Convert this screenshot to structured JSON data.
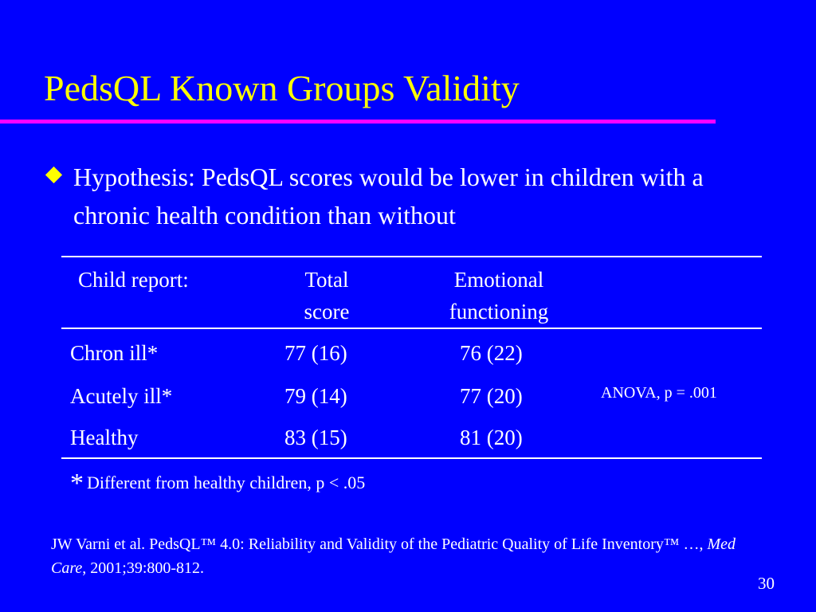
{
  "slide": {
    "title": "PedsQL Known Groups Validity",
    "bullet": "Hypothesis: PedsQL scores would be lower in children with a chronic health condition than without",
    "table": {
      "headers": {
        "col0": "Child report:",
        "col1_line1": "Total",
        "col1_line2": "score",
        "col2_line1": "Emotional",
        "col2_line2": "functioning"
      },
      "rows": [
        {
          "label": "Chron ill*",
          "total": "77 (16)",
          "emotional": "76 (22)"
        },
        {
          "label": "Acutely ill*",
          "total": "79 (14)",
          "emotional": "77 (20)"
        },
        {
          "label": "Healthy",
          "total": "83 (15)",
          "emotional": "81 (20)"
        }
      ],
      "anova": "ANOVA, p = .001"
    },
    "footnote": {
      "marker": "*",
      "text": "Different from healthy children, p < .05"
    },
    "citation": {
      "part1": "JW Varni et al. PedsQL™ 4.0: Reliability and Validity of the Pediatric Quality of Life Inventory™ …, ",
      "journal": "Med Care",
      "part2": ", 2001;39:800-812."
    },
    "page_number": "30"
  },
  "colors": {
    "background": "#0000ff",
    "title": "#ffff00",
    "title_rule": "#ff00ff",
    "text": "#ffffff",
    "bullet": "#ffff00"
  }
}
